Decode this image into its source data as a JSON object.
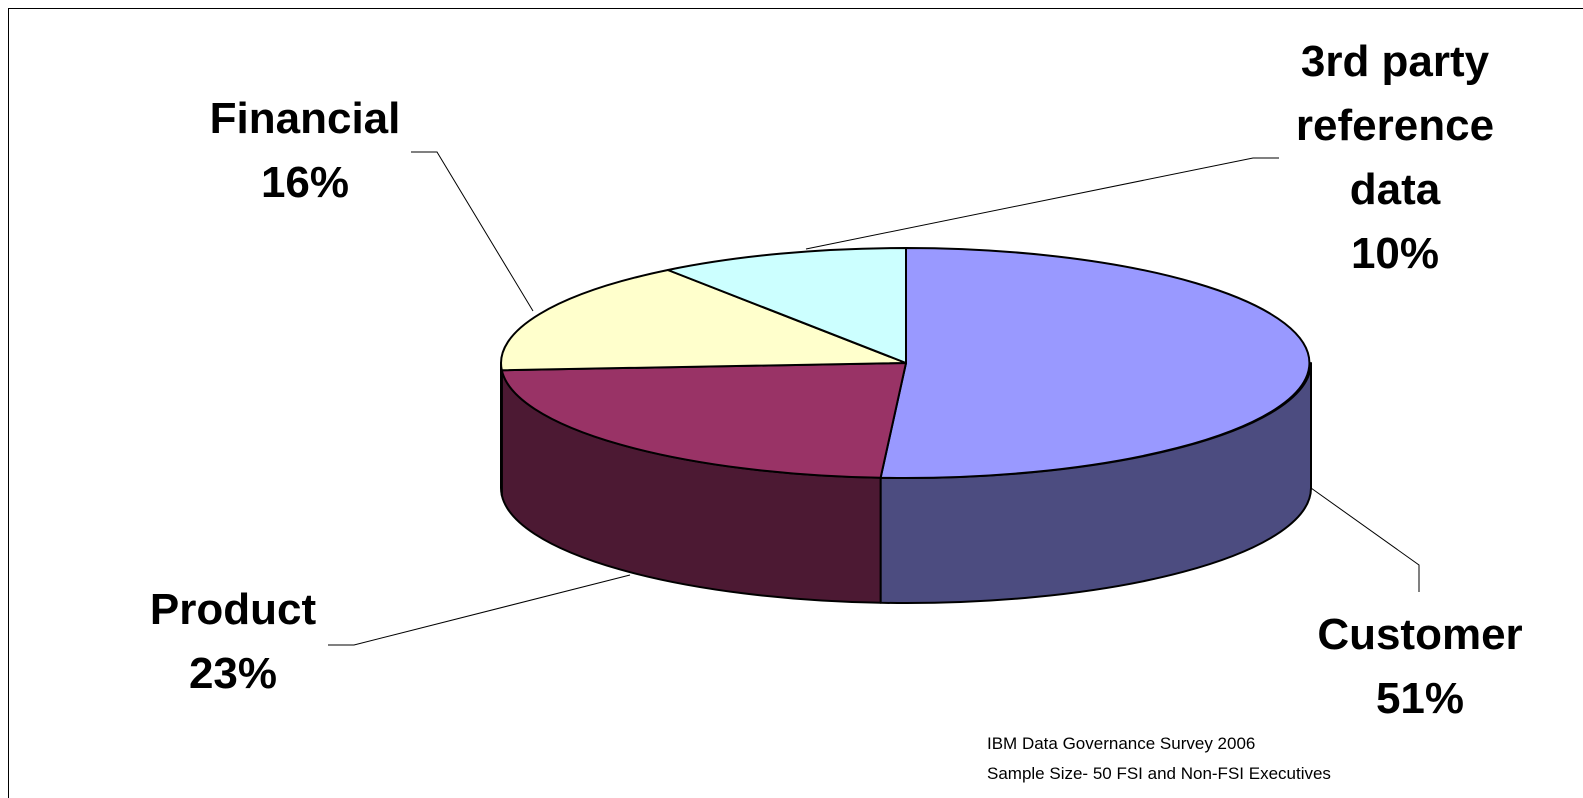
{
  "chart_data": {
    "type": "pie",
    "style": "3d-exploded-none",
    "slices": [
      {
        "name": "Customer",
        "value": 51,
        "label_value": "51%",
        "color": "#9999FF",
        "side_color": "#4C4C80"
      },
      {
        "name": "Product",
        "value": 23,
        "label_value": "23%",
        "color": "#993366",
        "side_color": "#4C1933"
      },
      {
        "name": "Financial",
        "value": 16,
        "label_value": "16%",
        "color": "#FFFFCC",
        "side_color": "#80806A"
      },
      {
        "name": "3rd party reference data",
        "value": 10,
        "label_value": "10%",
        "color": "#CCFFFF",
        "side_color": "#668080"
      }
    ],
    "legend": "none"
  },
  "labels": {
    "third_party": {
      "line1": "3rd party",
      "line2": "reference",
      "line3": "data",
      "line4": "10%"
    },
    "financial": {
      "line1": "Financial",
      "line2": "16%"
    },
    "product": {
      "line1": "Product",
      "line2": "23%"
    },
    "customer": {
      "line1": "Customer",
      "line2": "51%"
    }
  },
  "source": {
    "line1": "IBM Data Governance Survey 2006",
    "line2": "Sample Size- 50 FSI and Non-FSI Executives"
  }
}
